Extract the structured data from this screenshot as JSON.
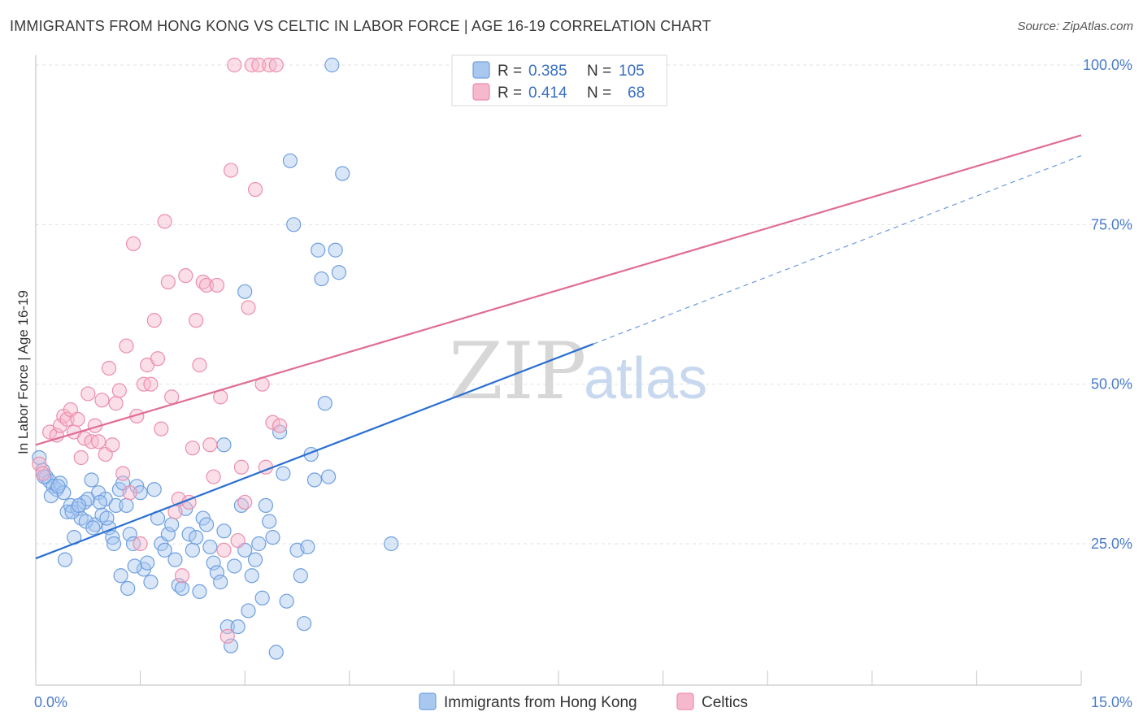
{
  "header": {
    "title": "IMMIGRANTS FROM HONG KONG VS CELTIC IN LABOR FORCE | AGE 16-19 CORRELATION CHART",
    "source": "Source: ZipAtlas.com"
  },
  "watermark": {
    "zip": "ZIP",
    "atlas": "atlas"
  },
  "legend": {
    "rows": [
      {
        "r_label": "R =",
        "r_value": "0.385",
        "n_label": "N =",
        "n_value": "105",
        "color": "#a9c8f0"
      },
      {
        "r_label": "R =",
        "r_value": "0.414",
        "n_label": "N =",
        "n_value": "68",
        "color": "#f6b8cc"
      }
    ]
  },
  "bottom_legend": {
    "items": [
      {
        "label": "Immigrants from Hong Kong",
        "color": "#a9c8f0"
      },
      {
        "label": "Celtics",
        "color": "#f6b8cc"
      }
    ]
  },
  "chart_data": {
    "type": "scatter",
    "ylabel": "In Labor Force | Age 16-19",
    "xlabel": "",
    "xlim": [
      0,
      15
    ],
    "ylim": [
      0,
      105
    ],
    "x_tick_labels": [
      {
        "value": 0,
        "label": "0.0%"
      },
      {
        "value": 15,
        "label": "15.0%"
      }
    ],
    "y_tick_labels": [
      {
        "value": 25,
        "label": "25.0%"
      },
      {
        "value": 50,
        "label": "50.0%"
      },
      {
        "value": 75,
        "label": "75.0%"
      },
      {
        "value": 100,
        "label": "100.0%"
      }
    ],
    "grid": {
      "horizontal": true,
      "style": "dashed"
    },
    "series": [
      {
        "name": "Immigrants from Hong Kong",
        "color": "#6f9fe0",
        "fill": "#a9c8f0",
        "trend": {
          "x0": 0,
          "y0": 22.7,
          "x1": 8.0,
          "y1": 56.3,
          "solid_to": 8.0,
          "dashed_to": 15.0,
          "dashed_y1": 85.8,
          "color": "#2a6fd1"
        },
        "points": [
          [
            0.05,
            38.5
          ],
          [
            0.1,
            36.5
          ],
          [
            0.15,
            35.5
          ],
          [
            0.2,
            34.8
          ],
          [
            0.25,
            34.0
          ],
          [
            0.3,
            33.5
          ],
          [
            0.35,
            34.5
          ],
          [
            0.4,
            33.0
          ],
          [
            0.45,
            30.0
          ],
          [
            0.5,
            31.0
          ],
          [
            0.55,
            26.0
          ],
          [
            0.6,
            30.5
          ],
          [
            0.65,
            29.0
          ],
          [
            0.7,
            31.5
          ],
          [
            0.75,
            32.0
          ],
          [
            0.8,
            35.0
          ],
          [
            0.85,
            28.0
          ],
          [
            0.9,
            33.0
          ],
          [
            0.95,
            29.5
          ],
          [
            1.0,
            32.0
          ],
          [
            1.05,
            27.5
          ],
          [
            1.1,
            26.0
          ],
          [
            1.15,
            31.0
          ],
          [
            1.2,
            33.5
          ],
          [
            1.25,
            34.5
          ],
          [
            1.3,
            31.0
          ],
          [
            1.35,
            26.5
          ],
          [
            1.4,
            25.0
          ],
          [
            1.45,
            34.0
          ],
          [
            1.5,
            33.0
          ],
          [
            1.55,
            21.0
          ],
          [
            1.6,
            22.0
          ],
          [
            1.65,
            19.0
          ],
          [
            1.7,
            33.5
          ],
          [
            1.75,
            29.0
          ],
          [
            1.8,
            25.0
          ],
          [
            1.85,
            24.0
          ],
          [
            1.9,
            26.5
          ],
          [
            1.95,
            28.0
          ],
          [
            2.0,
            22.5
          ],
          [
            2.05,
            18.5
          ],
          [
            2.1,
            18.0
          ],
          [
            2.15,
            30.5
          ],
          [
            2.2,
            26.5
          ],
          [
            2.25,
            24.0
          ],
          [
            2.3,
            26.0
          ],
          [
            2.35,
            17.5
          ],
          [
            2.4,
            29.0
          ],
          [
            2.45,
            28.0
          ],
          [
            2.5,
            24.5
          ],
          [
            2.55,
            22.0
          ],
          [
            2.6,
            20.5
          ],
          [
            2.65,
            19.0
          ],
          [
            2.7,
            27.0
          ],
          [
            2.75,
            12.0
          ],
          [
            2.8,
            9.0
          ],
          [
            2.85,
            21.5
          ],
          [
            2.9,
            12.0
          ],
          [
            2.95,
            31.0
          ],
          [
            3.0,
            24.0
          ],
          [
            3.05,
            14.5
          ],
          [
            3.1,
            20.0
          ],
          [
            3.15,
            22.5
          ],
          [
            3.2,
            25.0
          ],
          [
            3.25,
            16.5
          ],
          [
            3.3,
            31.0
          ],
          [
            3.35,
            28.5
          ],
          [
            3.4,
            26.0
          ],
          [
            3.45,
            8.0
          ],
          [
            3.5,
            42.5
          ],
          [
            3.55,
            36.0
          ],
          [
            3.6,
            16.0
          ],
          [
            3.65,
            85.0
          ],
          [
            3.7,
            75.0
          ],
          [
            3.75,
            24.0
          ],
          [
            3.8,
            20.0
          ],
          [
            3.85,
            12.5
          ],
          [
            3.9,
            24.5
          ],
          [
            3.95,
            39.0
          ],
          [
            4.0,
            35.0
          ],
          [
            4.05,
            71.0
          ],
          [
            4.1,
            66.5
          ],
          [
            4.15,
            47.0
          ],
          [
            4.2,
            35.5
          ],
          [
            4.25,
            100.0
          ],
          [
            4.3,
            71.0
          ],
          [
            4.35,
            67.5
          ],
          [
            4.4,
            83.0
          ],
          [
            0.12,
            35.5
          ],
          [
            0.22,
            32.5
          ],
          [
            0.32,
            34.0
          ],
          [
            0.42,
            22.5
          ],
          [
            0.52,
            30.0
          ],
          [
            0.62,
            31.0
          ],
          [
            0.72,
            28.5
          ],
          [
            0.82,
            27.5
          ],
          [
            0.92,
            31.5
          ],
          [
            1.02,
            29.0
          ],
          [
            1.12,
            25.0
          ],
          [
            1.22,
            20.0
          ],
          [
            1.32,
            18.0
          ],
          [
            1.42,
            21.5
          ],
          [
            2.7,
            40.5
          ],
          [
            3.0,
            64.5
          ],
          [
            5.1,
            25.0
          ]
        ]
      },
      {
        "name": "Celtics",
        "color": "#ec8eab",
        "fill": "#f6b8cc",
        "trend": {
          "x0": 0,
          "y0": 40.5,
          "x1": 15.0,
          "y1": 89.0,
          "color": "#e06c95"
        },
        "points": [
          [
            0.05,
            37.5
          ],
          [
            0.1,
            36.0
          ],
          [
            0.2,
            42.5
          ],
          [
            0.3,
            42.0
          ],
          [
            0.35,
            43.5
          ],
          [
            0.4,
            45.0
          ],
          [
            0.45,
            44.5
          ],
          [
            0.5,
            46.0
          ],
          [
            0.55,
            42.5
          ],
          [
            0.6,
            44.5
          ],
          [
            0.65,
            38.5
          ],
          [
            0.7,
            41.5
          ],
          [
            0.75,
            48.5
          ],
          [
            0.8,
            41.0
          ],
          [
            0.85,
            43.5
          ],
          [
            0.9,
            41.0
          ],
          [
            0.95,
            47.5
          ],
          [
            1.0,
            39.0
          ],
          [
            1.05,
            52.5
          ],
          [
            1.1,
            40.5
          ],
          [
            1.15,
            47.0
          ],
          [
            1.2,
            49.0
          ],
          [
            1.25,
            36.0
          ],
          [
            1.3,
            56.0
          ],
          [
            1.35,
            33.0
          ],
          [
            1.4,
            72.0
          ],
          [
            1.45,
            45.0
          ],
          [
            1.5,
            25.0
          ],
          [
            1.55,
            50.0
          ],
          [
            1.6,
            53.0
          ],
          [
            1.65,
            50.0
          ],
          [
            1.7,
            60.0
          ],
          [
            1.75,
            54.0
          ],
          [
            1.8,
            43.0
          ],
          [
            1.85,
            75.5
          ],
          [
            1.9,
            66.0
          ],
          [
            1.95,
            48.0
          ],
          [
            2.0,
            30.0
          ],
          [
            2.05,
            32.0
          ],
          [
            2.1,
            20.0
          ],
          [
            2.15,
            67.0
          ],
          [
            2.2,
            31.5
          ],
          [
            2.25,
            40.0
          ],
          [
            2.3,
            60.0
          ],
          [
            2.35,
            53.0
          ],
          [
            2.4,
            66.0
          ],
          [
            2.45,
            65.5
          ],
          [
            2.5,
            40.5
          ],
          [
            2.55,
            35.5
          ],
          [
            2.6,
            65.5
          ],
          [
            2.65,
            48.0
          ],
          [
            2.7,
            24.0
          ],
          [
            2.75,
            10.5
          ],
          [
            2.8,
            83.5
          ],
          [
            2.85,
            100.0
          ],
          [
            2.9,
            25.5
          ],
          [
            2.95,
            37.0
          ],
          [
            3.0,
            31.5
          ],
          [
            3.05,
            62.0
          ],
          [
            3.1,
            100.0
          ],
          [
            3.15,
            80.5
          ],
          [
            3.2,
            100.0
          ],
          [
            3.25,
            50.0
          ],
          [
            3.3,
            37.0
          ],
          [
            3.35,
            100.0
          ],
          [
            3.4,
            44.0
          ],
          [
            3.45,
            100.0
          ],
          [
            3.5,
            43.5
          ]
        ]
      }
    ]
  }
}
